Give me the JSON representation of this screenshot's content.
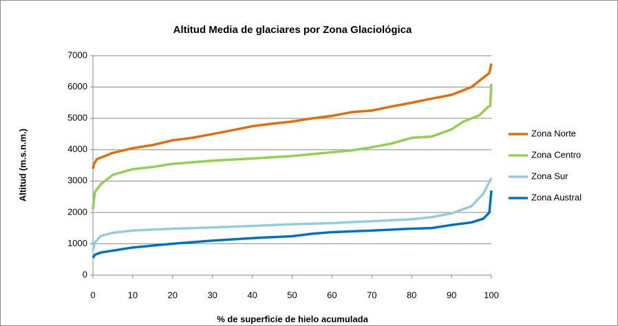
{
  "chart_data": {
    "type": "line",
    "title": "Altitud Media de glaciares por Zona Glaciológica",
    "x_label": "% de superficie de hielo acumulada",
    "y_label": "Altitud (m.s.n.m.)",
    "xlim": [
      0,
      100
    ],
    "xticks": [
      0,
      10,
      20,
      30,
      40,
      50,
      60,
      70,
      80,
      90,
      100
    ],
    "ylim": [
      0,
      7000
    ],
    "yticks": [
      0,
      1000,
      2000,
      3000,
      4000,
      5000,
      6000,
      7000
    ],
    "grid": true,
    "legend": "right",
    "series": [
      {
        "name": "Zona Norte",
        "color": "#e36c0a",
        "x": [
          0,
          0.3,
          1,
          3,
          5,
          10,
          15,
          20,
          25,
          30,
          35,
          40,
          45,
          50,
          55,
          60,
          65,
          70,
          75,
          80,
          85,
          90,
          95,
          98,
          99.5,
          100
        ],
        "values": [
          3400,
          3550,
          3700,
          3800,
          3900,
          4050,
          4150,
          4300,
          4380,
          4500,
          4620,
          4750,
          4830,
          4900,
          5000,
          5080,
          5200,
          5250,
          5380,
          5500,
          5630,
          5750,
          6000,
          6300,
          6450,
          6750
        ]
      },
      {
        "name": "Zona Centro",
        "color": "#92d050",
        "x": [
          0,
          0.5,
          2,
          5,
          10,
          15,
          20,
          30,
          40,
          50,
          60,
          65,
          70,
          75,
          80,
          85,
          90,
          93,
          97,
          99,
          99.7,
          100
        ],
        "values": [
          2100,
          2650,
          2900,
          3200,
          3380,
          3450,
          3550,
          3650,
          3720,
          3800,
          3920,
          3980,
          4080,
          4200,
          4380,
          4420,
          4650,
          4900,
          5100,
          5350,
          5400,
          6100
        ]
      },
      {
        "name": "Zona Sur",
        "color": "#93cddd",
        "x": [
          0,
          0.5,
          2,
          5,
          10,
          20,
          30,
          40,
          50,
          60,
          70,
          80,
          85,
          90,
          95,
          98,
          100
        ],
        "values": [
          800,
          1050,
          1250,
          1350,
          1420,
          1480,
          1520,
          1570,
          1620,
          1660,
          1720,
          1780,
          1850,
          1970,
          2200,
          2600,
          3100
        ]
      },
      {
        "name": "Zona Austral",
        "color": "#0070c0",
        "x": [
          0,
          0.5,
          2,
          5,
          10,
          20,
          30,
          40,
          50,
          55,
          60,
          70,
          80,
          85,
          90,
          95,
          98,
          99.5,
          100
        ],
        "values": [
          550,
          650,
          720,
          780,
          880,
          1000,
          1100,
          1180,
          1240,
          1320,
          1370,
          1420,
          1480,
          1500,
          1600,
          1680,
          1800,
          2000,
          2700
        ]
      }
    ]
  }
}
